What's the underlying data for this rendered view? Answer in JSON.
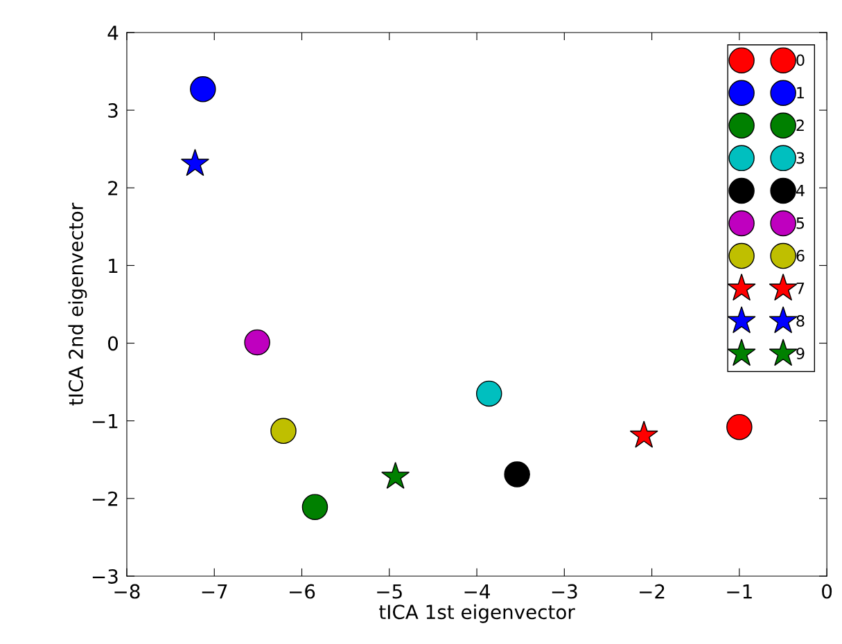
{
  "chart_data": {
    "type": "scatter",
    "xlabel": "tICA 1st eigenvector",
    "ylabel": "tICA 2nd eigenvector",
    "xlim": [
      -8,
      0
    ],
    "ylim": [
      -3,
      4
    ],
    "xticks": [
      -8,
      -7,
      -6,
      -5,
      -4,
      -3,
      -2,
      -1,
      0
    ],
    "yticks": [
      -3,
      -2,
      -1,
      0,
      1,
      2,
      3,
      4
    ],
    "grid": false,
    "legend": "top right",
    "series": [
      {
        "name": "0",
        "color": "#ff0000",
        "marker": "circle",
        "x": [
          -1.0
        ],
        "values": [
          -1.08
        ]
      },
      {
        "name": "1",
        "color": "#0000ff",
        "marker": "circle",
        "x": [
          -7.13
        ],
        "values": [
          3.27
        ]
      },
      {
        "name": "2",
        "color": "#008000",
        "marker": "circle",
        "x": [
          -5.85
        ],
        "values": [
          -2.11
        ]
      },
      {
        "name": "3",
        "color": "#00bfbf",
        "marker": "circle",
        "x": [
          -3.86
        ],
        "values": [
          -0.65
        ]
      },
      {
        "name": "4",
        "color": "#000000",
        "marker": "circle",
        "x": [
          -3.54
        ],
        "values": [
          -1.69
        ]
      },
      {
        "name": "5",
        "color": "#bf00bf",
        "marker": "circle",
        "x": [
          -6.51
        ],
        "values": [
          0.01
        ]
      },
      {
        "name": "6",
        "color": "#bfbf00",
        "marker": "circle",
        "x": [
          -6.21
        ],
        "values": [
          -1.13
        ]
      },
      {
        "name": "7",
        "color": "#ff0000",
        "marker": "star",
        "x": [
          -2.09
        ],
        "values": [
          -1.19
        ]
      },
      {
        "name": "8",
        "color": "#0000ff",
        "marker": "star",
        "x": [
          -7.22
        ],
        "values": [
          2.31
        ]
      },
      {
        "name": "9",
        "color": "#008000",
        "marker": "star",
        "x": [
          -4.93
        ],
        "values": [
          -1.72
        ]
      }
    ]
  }
}
